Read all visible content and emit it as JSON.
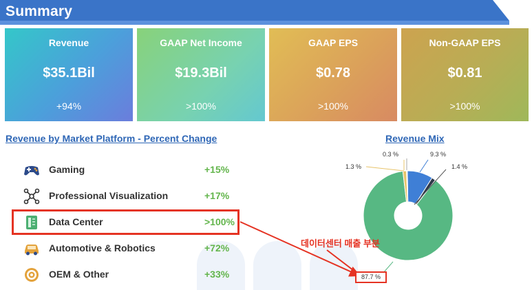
{
  "header": {
    "title": "Summary"
  },
  "cards": [
    {
      "label": "Revenue",
      "value": "$35.1Bil",
      "change": "+94%"
    },
    {
      "label": "GAAP Net Income",
      "value": "$19.3Bil",
      "change": ">100%"
    },
    {
      "label": "GAAP EPS",
      "value": "$0.78",
      "change": ">100%"
    },
    {
      "label": "Non-GAAP EPS",
      "value": "$0.81",
      "change": ">100%"
    }
  ],
  "platform": {
    "title": "Revenue by Market Platform - Percent Change",
    "rows": [
      {
        "name": "Gaming",
        "change": "+15%",
        "icon": "gamepad-icon"
      },
      {
        "name": "Professional Visualization",
        "change": "+17%",
        "icon": "network-nodes-icon"
      },
      {
        "name": "Data Center",
        "change": ">100%",
        "icon": "server-rack-icon"
      },
      {
        "name": "Automotive & Robotics",
        "change": "+72%",
        "icon": "car-icon"
      },
      {
        "name": "OEM & Other",
        "change": "+33%",
        "icon": "target-icon"
      }
    ]
  },
  "revenue_mix": {
    "title": "Revenue Mix",
    "labels": [
      "87.7 %",
      "9.3 %",
      "1.4 %",
      "1.3 %",
      "0.3 %"
    ],
    "values": [
      87.7,
      9.3,
      1.4,
      1.3,
      0.3
    ],
    "colors": [
      "#57b883",
      "#3f7fd6",
      "#2f3a4a",
      "#e8c46a",
      "#d1d1d1"
    ]
  },
  "annotation": {
    "text": "데이터센터 매출 부분"
  },
  "colors": {
    "header": "#3a74c8",
    "link": "#2f67b6",
    "positive": "#63b54c",
    "highlight": "#e53323",
    "icon_blue": "#2c4a8a",
    "icon_gold": "#e3a23b"
  }
}
